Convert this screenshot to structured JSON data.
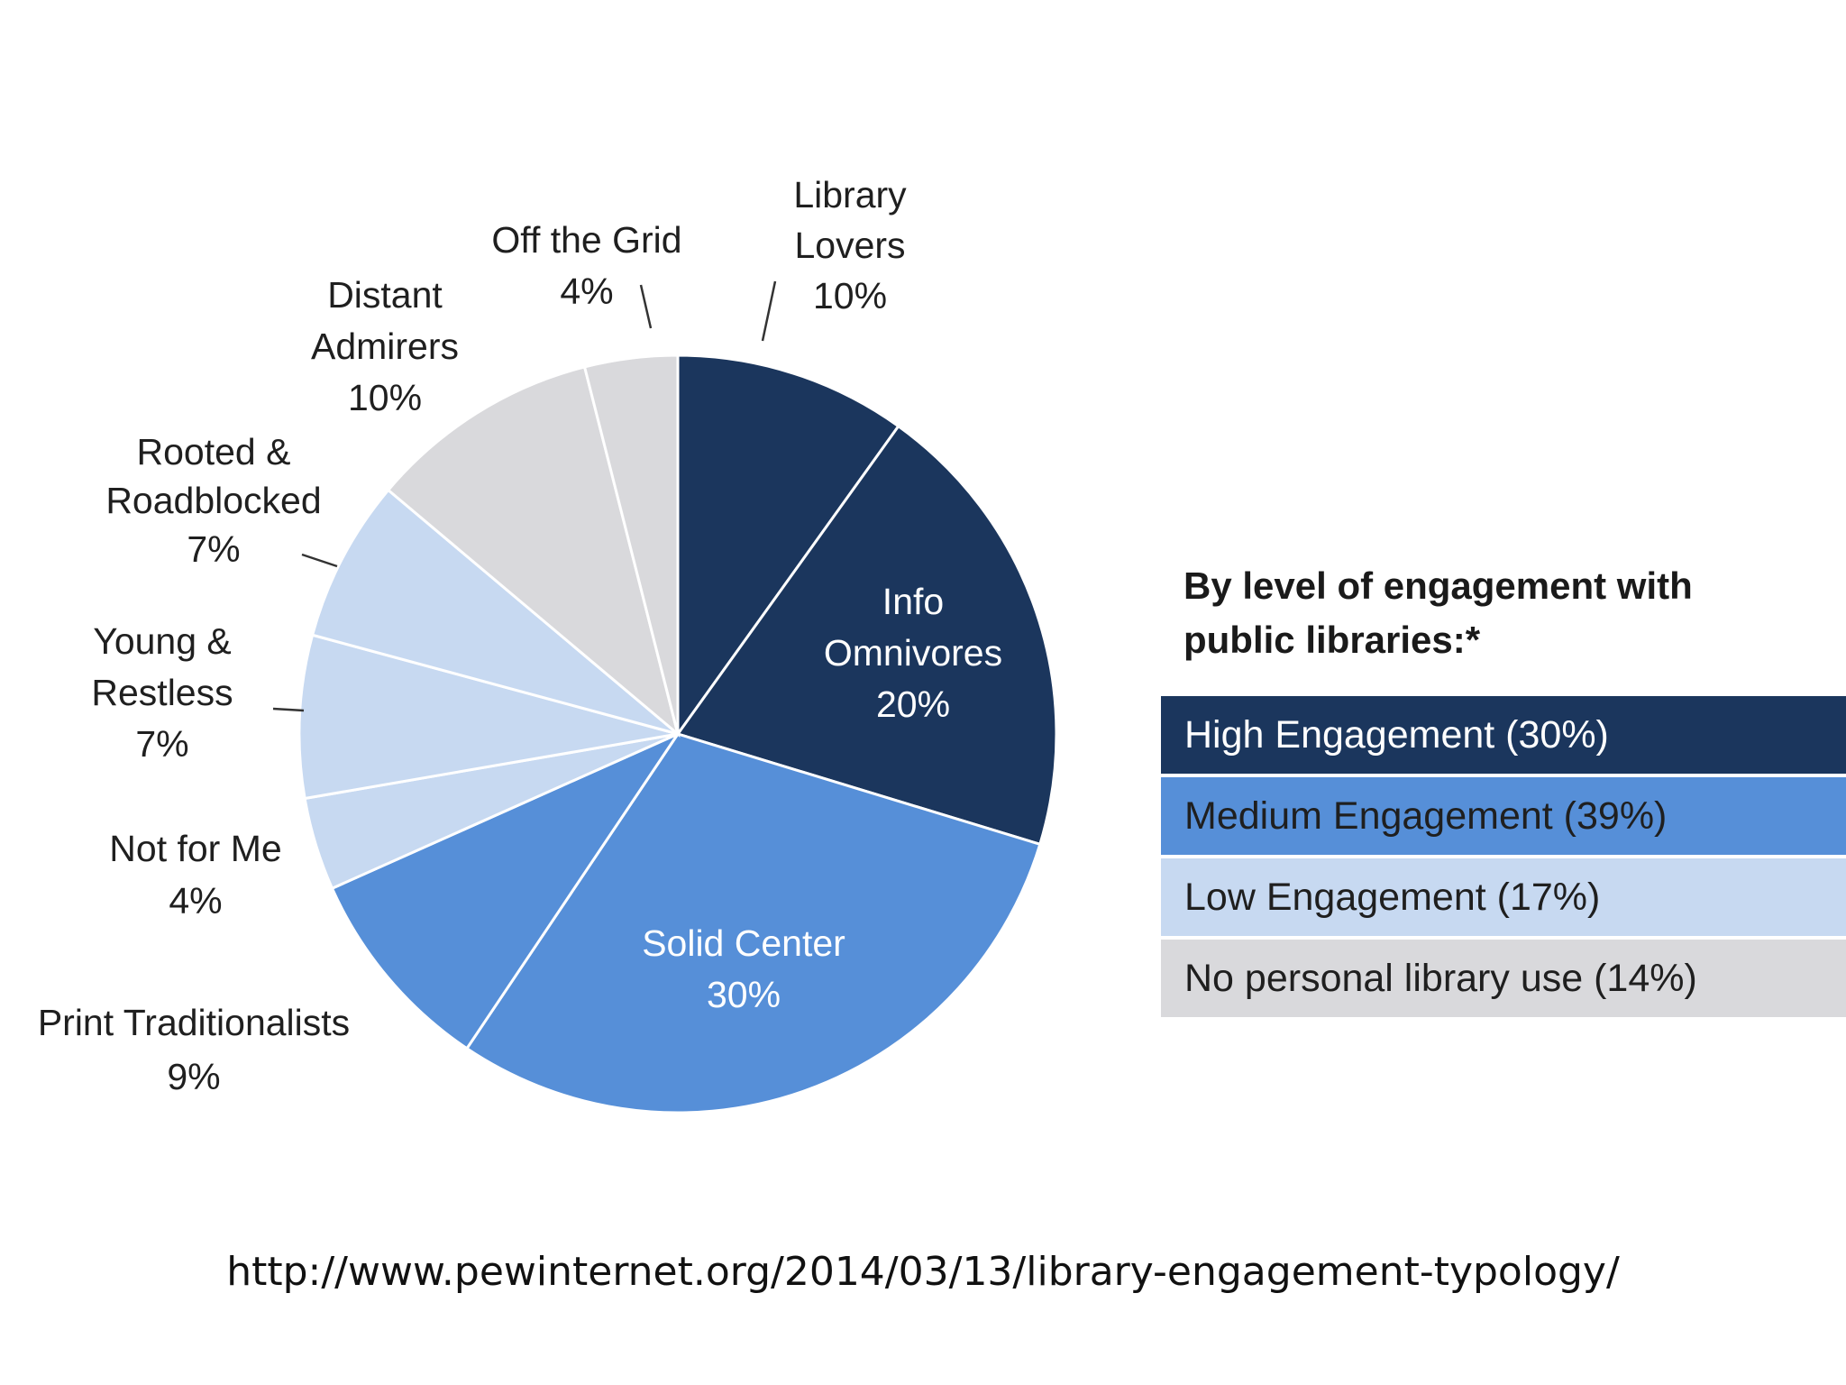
{
  "chart_data": {
    "type": "pie",
    "slices": [
      {
        "name": "Library Lovers",
        "value_label": "10%",
        "value": 10,
        "color": "#1b365d",
        "level": "high"
      },
      {
        "name": "Info Omnivores",
        "value_label": "20%",
        "value": 20,
        "color": "#1b365d",
        "level": "high"
      },
      {
        "name": "Solid Center",
        "value_label": "30%",
        "value": 30,
        "color": "#568fd8",
        "level": "medium"
      },
      {
        "name": "Print Traditionalists",
        "value_label": "9%",
        "value": 9,
        "color": "#568fd8",
        "level": "medium"
      },
      {
        "name": "Not for Me",
        "value_label": "4%",
        "value": 4,
        "color": "#c7d9f1",
        "level": "low"
      },
      {
        "name": "Young & Restless",
        "value_label": "7%",
        "value": 7,
        "color": "#c7d9f1",
        "level": "low"
      },
      {
        "name": "Rooted & Roadblocked",
        "value_label": "7%",
        "value": 7,
        "color": "#c7d9f1",
        "level": "low"
      },
      {
        "name": "Distant Admirers",
        "value_label": "10%",
        "value": 10,
        "color": "#d9d9dc",
        "level": "none"
      },
      {
        "name": "Off the Grid",
        "value_label": "4%",
        "value": 4,
        "color": "#d9d9dc",
        "level": "none"
      }
    ],
    "labels": [
      {
        "lines": [
          "Library",
          "Lovers",
          "10%"
        ],
        "inside": false
      },
      {
        "lines": [
          "Info",
          "Omnivores",
          "20%"
        ],
        "inside": true
      },
      {
        "lines": [
          "Solid Center",
          "30%"
        ],
        "inside": true
      },
      {
        "lines": [
          "Print Traditionalists",
          "9%"
        ],
        "inside": false
      },
      {
        "lines": [
          "Not for Me",
          "4%"
        ],
        "inside": false
      },
      {
        "lines": [
          "Young &",
          "Restless",
          "7%"
        ],
        "inside": false
      },
      {
        "lines": [
          "Rooted &",
          "Roadblocked",
          "7%"
        ],
        "inside": false
      },
      {
        "lines": [
          "Distant",
          "Admirers",
          "10%"
        ],
        "inside": false
      },
      {
        "lines": [
          "Off the Grid",
          "4%"
        ],
        "inside": false
      }
    ],
    "legend": {
      "title": "By level of engagement with public libraries:*",
      "entries": [
        {
          "label": "High Engagement (30%)",
          "color": "#1b365d",
          "dark": true
        },
        {
          "label": "Medium Engagement (39%)",
          "color": "#568fd8",
          "dark": false
        },
        {
          "label": "Low Engagement (17%)",
          "color": "#c7d9f1",
          "dark": false
        },
        {
          "label": "No personal library use (14%)",
          "color": "#d9d9dc",
          "dark": false
        }
      ]
    }
  },
  "source": {
    "url": "http://www.pewinternet.org/2014/03/13/library-engagement-typology/"
  }
}
